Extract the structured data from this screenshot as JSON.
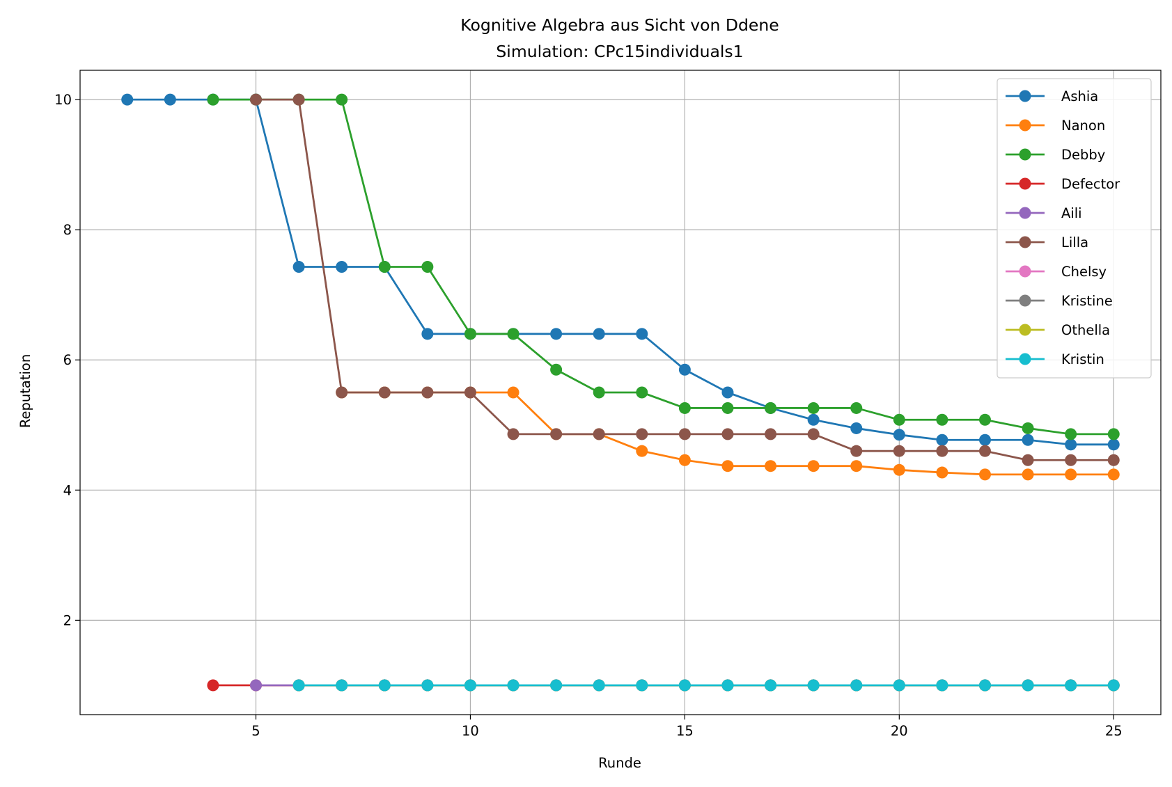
{
  "chart_data": {
    "type": "line",
    "title": "Kognitive Algebra aus Sicht von Ddene",
    "subtitle": "Simulation: CPc15individuals1",
    "xlabel": "Runde",
    "ylabel": "Reputation",
    "xlim": [
      0.9,
      26.1
    ],
    "ylim": [
      0.55,
      10.45
    ],
    "xticks": [
      5,
      10,
      15,
      20,
      25
    ],
    "yticks": [
      2,
      4,
      6,
      8,
      10
    ],
    "grid": true,
    "legend_position": "top-right",
    "series": [
      {
        "name": "Ashia",
        "color": "#1f77b4",
        "x": [
          2,
          3,
          4,
          5,
          6,
          7,
          8,
          9,
          10,
          11,
          12,
          13,
          14,
          15,
          16,
          17,
          18,
          19,
          20,
          21,
          22,
          23,
          24,
          25
        ],
        "y": [
          10,
          10,
          10,
          10,
          7.43,
          7.43,
          7.43,
          6.4,
          6.4,
          6.4,
          6.4,
          6.4,
          6.4,
          5.85,
          5.5,
          5.26,
          5.08,
          4.95,
          4.85,
          4.77,
          4.77,
          4.77,
          4.7,
          4.7
        ]
      },
      {
        "name": "Nanon",
        "color": "#ff7f0e",
        "x": [
          7,
          8,
          9,
          10,
          11,
          12,
          13,
          14,
          15,
          16,
          17,
          18,
          19,
          20,
          21,
          22,
          23,
          24,
          25
        ],
        "y": [
          5.5,
          5.5,
          5.5,
          5.5,
          5.5,
          4.86,
          4.86,
          4.6,
          4.46,
          4.37,
          4.37,
          4.37,
          4.37,
          4.31,
          4.27,
          4.24,
          4.24,
          4.24,
          4.24
        ]
      },
      {
        "name": "Debby",
        "color": "#2ca02c",
        "x": [
          4,
          5,
          6,
          7,
          8,
          9,
          10,
          11,
          12,
          13,
          14,
          15,
          16,
          17,
          18,
          19,
          20,
          21,
          22,
          23,
          24,
          25
        ],
        "y": [
          10,
          10,
          10,
          10,
          7.43,
          7.43,
          6.4,
          6.4,
          5.85,
          5.5,
          5.5,
          5.26,
          5.26,
          5.26,
          5.26,
          5.26,
          5.08,
          5.08,
          5.08,
          4.95,
          4.86,
          4.86
        ]
      },
      {
        "name": "Defector",
        "color": "#d62728",
        "x": [
          4,
          5,
          6,
          7,
          8,
          9,
          10,
          11,
          12,
          13,
          14,
          15,
          16,
          17,
          18,
          19,
          20,
          21,
          22,
          23,
          24,
          25
        ],
        "y": [
          1,
          1,
          1,
          1,
          1,
          1,
          1,
          1,
          1,
          1,
          1,
          1,
          1,
          1,
          1,
          1,
          1,
          1,
          1,
          1,
          1,
          1
        ]
      },
      {
        "name": "Aili",
        "color": "#9467bd",
        "x": [
          5,
          6,
          7,
          8,
          9,
          10,
          11,
          12,
          13,
          14,
          15,
          16,
          17,
          18,
          19,
          20,
          21,
          22,
          23,
          24,
          25
        ],
        "y": [
          1,
          1,
          1,
          1,
          1,
          1,
          1,
          1,
          1,
          1,
          1,
          1,
          1,
          1,
          1,
          1,
          1,
          1,
          1,
          1,
          1
        ]
      },
      {
        "name": "Lilla",
        "color": "#8c564b",
        "x": [
          5,
          6,
          7,
          8,
          9,
          10,
          11,
          12,
          13,
          14,
          15,
          16,
          17,
          18,
          19,
          20,
          21,
          22,
          23,
          24,
          25
        ],
        "y": [
          10,
          10,
          5.5,
          5.5,
          5.5,
          5.5,
          4.86,
          4.86,
          4.86,
          4.86,
          4.86,
          4.86,
          4.86,
          4.86,
          4.6,
          4.6,
          4.6,
          4.6,
          4.46,
          4.46,
          4.46
        ]
      },
      {
        "name": "Chelsy",
        "color": "#e377c2",
        "x": [
          6,
          7,
          8,
          9,
          10,
          11,
          12,
          13,
          14,
          15,
          16,
          17,
          18,
          19,
          20,
          21,
          22,
          23,
          24,
          25
        ],
        "y": [
          1,
          1,
          1,
          1,
          1,
          1,
          1,
          1,
          1,
          1,
          1,
          1,
          1,
          1,
          1,
          1,
          1,
          1,
          1,
          1
        ]
      },
      {
        "name": "Kristine",
        "color": "#7f7f7f",
        "x": [
          6,
          7,
          8,
          9,
          10,
          11,
          12,
          13,
          14,
          15,
          16,
          17,
          18,
          19,
          20,
          21,
          22,
          23,
          24,
          25
        ],
        "y": [
          1,
          1,
          1,
          1,
          1,
          1,
          1,
          1,
          1,
          1,
          1,
          1,
          1,
          1,
          1,
          1,
          1,
          1,
          1,
          1
        ]
      },
      {
        "name": "Othella",
        "color": "#bcbd22",
        "x": [
          6,
          7,
          8,
          9,
          10,
          11,
          12,
          13,
          14,
          15,
          16,
          17,
          18,
          19,
          20,
          21,
          22,
          23,
          24,
          25
        ],
        "y": [
          1,
          1,
          1,
          1,
          1,
          1,
          1,
          1,
          1,
          1,
          1,
          1,
          1,
          1,
          1,
          1,
          1,
          1,
          1,
          1
        ]
      },
      {
        "name": "Kristin",
        "color": "#17becf",
        "x": [
          6,
          7,
          8,
          9,
          10,
          11,
          12,
          13,
          14,
          15,
          16,
          17,
          18,
          19,
          20,
          21,
          22,
          23,
          24,
          25
        ],
        "y": [
          1,
          1,
          1,
          1,
          1,
          1,
          1,
          1,
          1,
          1,
          1,
          1,
          1,
          1,
          1,
          1,
          1,
          1,
          1,
          1
        ]
      }
    ]
  }
}
